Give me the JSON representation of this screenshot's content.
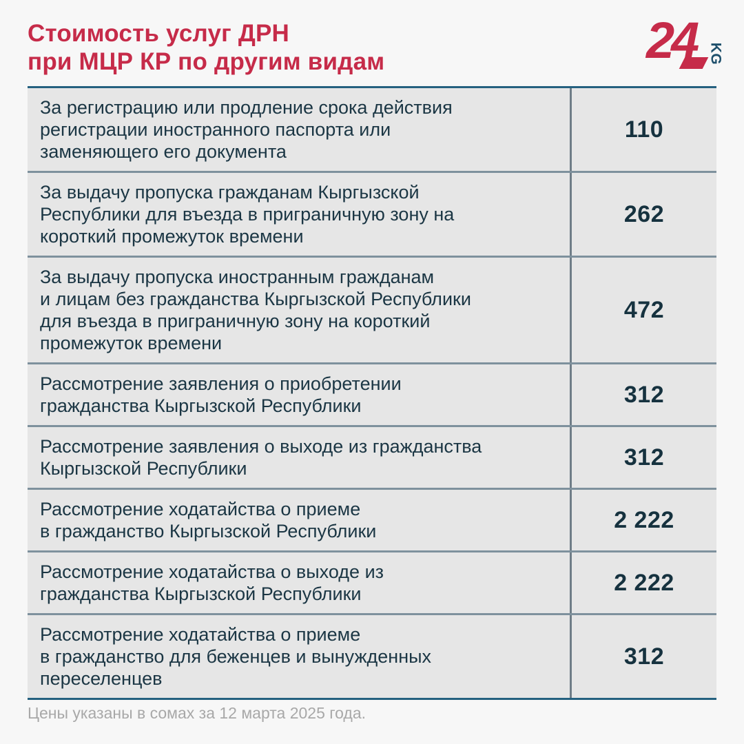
{
  "header": {
    "title_line1": "Стоимость услуг ДРН",
    "title_line2": "при МЦР КР по другим видам"
  },
  "logo": {
    "number": "24",
    "country": "KG"
  },
  "chart_data": {
    "type": "table",
    "title": "Стоимость услуг ДРН при МЦР КР по другим видам",
    "rows": [
      {
        "service": "За регистрацию или продление срока действия\nрегистрации иностранного паспорта или\nзаменяющего его документа",
        "price": "110",
        "price_value": 110
      },
      {
        "service": "За выдачу пропуска гражданам Кыргызской\nРеспублики для въезда в приграничную зону на\nкороткий промежуток времени",
        "price": "262",
        "price_value": 262
      },
      {
        "service": "За выдачу пропуска иностранным гражданам\nи лицам без гражданства Кыргызской Республики\nдля въезда в приграничную зону на короткий\nпромежуток времени",
        "price": "472",
        "price_value": 472
      },
      {
        "service": "Рассмотрение заявления о приобретении\nгражданства Кыргызской Республики",
        "price": "312",
        "price_value": 312
      },
      {
        "service": "Рассмотрение заявления о выходе из гражданства\nКыргызской Республики",
        "price": "312",
        "price_value": 312
      },
      {
        "service": "Рассмотрение ходатайства о приеме\nв гражданство Кыргызской Республики",
        "price": "2 222",
        "price_value": 2222
      },
      {
        "service": "Рассмотрение ходатайства о выходе из\nгражданства Кыргызской Республики",
        "price": "2 222",
        "price_value": 2222
      },
      {
        "service": "Рассмотрение ходатайства о приеме\nв гражданство для беженцев и вынужденных\nпереселенцев",
        "price": "312",
        "price_value": 312
      }
    ],
    "note": "Цены указаны в сомах за 12 марта 2025 года."
  },
  "footer": {
    "note": "Цены указаны в сомах за 12 марта 2025 года."
  },
  "colors": {
    "page_bg": "#f7f7f7",
    "row_bg": "#e6e6e6",
    "accent_red": "#c62b49",
    "text_dark": "#1b3644",
    "price_dark": "#16323f",
    "outer_border": "#24607f",
    "inner_separator": "#7e919d",
    "column_divider": "#6f7d87",
    "footer_text": "#a8a8a8",
    "logo_kg_blue": "#1d4f6b"
  }
}
